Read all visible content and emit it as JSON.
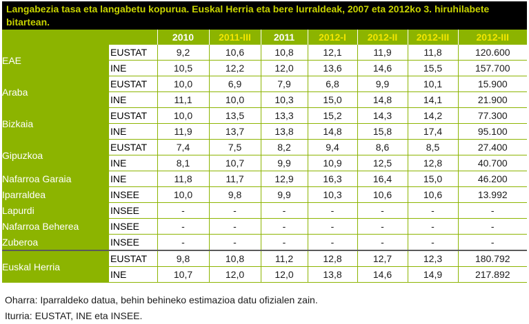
{
  "title": "Langabezia tasa eta langabetu kopurua. Euskal Herria eta bere lurraldeak, 2007 eta 2012ko 3. hiruhilabete bitartean.",
  "columns": [
    "2010",
    "2011-III",
    "2011",
    "2012-I",
    "2012-II",
    "2012-III",
    "2012-III"
  ],
  "rows": [
    {
      "region": "EAE",
      "source": "EUSTAT",
      "values": [
        "9,2",
        "10,6",
        "10,8",
        "12,1",
        "11,9",
        "11,8",
        "120.600"
      ]
    },
    {
      "region": "",
      "source": "INE",
      "values": [
        "10,5",
        "12,2",
        "12,0",
        "13,6",
        "14,6",
        "15,5",
        "157.700"
      ]
    },
    {
      "region": "Araba",
      "source": "EUSTAT",
      "values": [
        "10,0",
        "6,9",
        "7,9",
        "6,8",
        "9,9",
        "10,1",
        "15.900"
      ]
    },
    {
      "region": "",
      "source": "INE",
      "values": [
        "11,1",
        "10,0",
        "10,3",
        "15,0",
        "14,8",
        "14,1",
        "21.900"
      ]
    },
    {
      "region": "Bizkaia",
      "source": "EUSTAT",
      "values": [
        "10,0",
        "13,5",
        "13,3",
        "15,2",
        "14,3",
        "14,2",
        "77.300"
      ]
    },
    {
      "region": "",
      "source": "INE",
      "values": [
        "11,9",
        "13,7",
        "13,8",
        "14,8",
        "15,8",
        "17,4",
        "95.100"
      ]
    },
    {
      "region": "Gipuzkoa",
      "source": "EUSTAT",
      "values": [
        "7,4",
        "7,5",
        "8,2",
        "9,4",
        "8,6",
        "8,5",
        "27.400"
      ]
    },
    {
      "region": "",
      "source": "INE",
      "values": [
        "8,1",
        "10,7",
        "9,9",
        "10,9",
        "12,5",
        "12,8",
        "40.700"
      ]
    },
    {
      "region": "Nafarroa Garaia",
      "source": "INE",
      "values": [
        "11,8",
        "11,7",
        "12,9",
        "16,3",
        "16,4",
        "15,0",
        "46.200"
      ]
    },
    {
      "region": "Iparraldea",
      "source": "INSEE",
      "values": [
        "10,0",
        "9,8",
        "9,9",
        "10,3",
        "10,6",
        "10,6",
        "13.992"
      ]
    },
    {
      "region": "Lapurdi",
      "source": "INSEE",
      "values": [
        "-",
        "-",
        "-",
        "-",
        "-",
        "-",
        "-"
      ]
    },
    {
      "region": "Nafarroa Beherea",
      "source": "INSEE",
      "values": [
        "-",
        "-",
        "-",
        "-",
        "-",
        "-",
        "-"
      ]
    },
    {
      "region": "Zuberoa",
      "source": "INSEE",
      "values": [
        "-",
        "-",
        "-",
        "-",
        "-",
        "-",
        "-"
      ]
    },
    {
      "region": "Euskal Herria",
      "source": "EUSTAT",
      "values": [
        "9,8",
        "10,8",
        "11,2",
        "12,8",
        "12,7",
        "12,3",
        "180.792"
      ]
    },
    {
      "region": "",
      "source": "INE",
      "values": [
        "10,7",
        "12,0",
        "12,0",
        "13,8",
        "14,6",
        "14,9",
        "217.892"
      ]
    }
  ],
  "notes": {
    "note": "Oharra: Iparraldeko datua, behin behineko estimazioa datu ofizialen zain.",
    "source": "Iturria: EUSTAT, INE eta INSEE."
  },
  "colors": {
    "green": "#8cb400",
    "title_bg": "#000000",
    "title_text": "#c8d400",
    "yellow_header": "#f3e600"
  }
}
